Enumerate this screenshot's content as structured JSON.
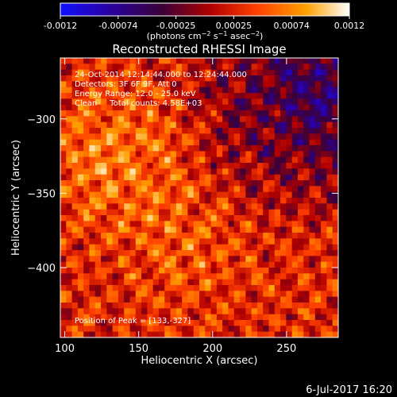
{
  "colorbar": {
    "ticks": [
      "-0.0012",
      "-0.00074",
      "-0.00025",
      "0.00025",
      "0.00074",
      "0.0012"
    ],
    "range": [
      -0.0012,
      0.0012
    ],
    "colors": [
      "#1010ff",
      "#2a00a0",
      "#3a0038",
      "#b00000",
      "#ff4000",
      "#ffa000",
      "#ffffff"
    ]
  },
  "chart_data": {
    "type": "heatmap",
    "title": "Reconstructed RHESSI Image",
    "xlabel": "Heliocentric X (arcsec)",
    "ylabel": "Heliocentric Y (arcsec)",
    "xlim": [
      97,
      285
    ],
    "ylim": [
      -447,
      -259
    ],
    "xticks": [
      100,
      150,
      200,
      250
    ],
    "yticks": [
      -300,
      -350,
      -400
    ],
    "info_lines": [
      "24-Oct-2014 12:14:44.000 to 12:24:44.000",
      "Detectors: 3F 6F 9F, Att 0",
      "Energy Range: 12.0 - 25.0 keV",
      "Clean     Total counts: 4.58E+03"
    ],
    "peak_label": "Position of Peak = [133,-327]",
    "peak": [
      133,
      -327
    ],
    "grid": false,
    "legend": "colorbar-top"
  },
  "footer": {
    "timestamp": "6-Jul-2017 16:20"
  }
}
